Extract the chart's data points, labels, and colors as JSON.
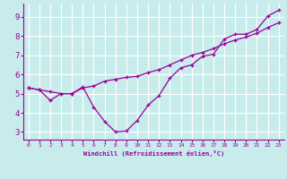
{
  "xlabel": "Windchill (Refroidissement éolien,°C)",
  "xlim": [
    -0.5,
    23.5
  ],
  "ylim": [
    2.6,
    9.7
  ],
  "xticks": [
    0,
    1,
    2,
    3,
    4,
    5,
    6,
    7,
    8,
    9,
    10,
    11,
    12,
    13,
    14,
    15,
    16,
    17,
    18,
    19,
    20,
    21,
    22,
    23
  ],
  "yticks": [
    3,
    4,
    5,
    6,
    7,
    8,
    9
  ],
  "bg_color": "#c8ecec",
  "line_color": "#990099",
  "grid_color": "#ffffff",
  "line1_x": [
    0,
    1,
    2,
    3,
    4,
    5,
    6,
    7,
    8,
    9,
    10,
    11,
    12,
    13,
    14,
    15,
    16,
    17,
    18,
    19,
    20,
    21,
    22,
    23
  ],
  "line1_y": [
    5.3,
    5.2,
    5.1,
    5.0,
    5.0,
    5.3,
    5.4,
    5.65,
    5.75,
    5.85,
    5.9,
    6.1,
    6.25,
    6.5,
    6.75,
    7.0,
    7.15,
    7.35,
    7.6,
    7.8,
    7.95,
    8.15,
    8.45,
    8.7
  ],
  "line2_x": [
    0,
    1,
    2,
    3,
    4,
    5,
    6,
    7,
    8,
    9,
    10,
    11,
    12,
    13,
    14,
    15,
    16,
    17,
    18,
    19,
    20,
    21,
    22,
    23
  ],
  "line2_y": [
    5.3,
    5.2,
    4.65,
    5.0,
    5.0,
    5.35,
    4.3,
    3.55,
    3.0,
    3.05,
    3.6,
    4.4,
    4.9,
    5.8,
    6.35,
    6.5,
    6.95,
    7.05,
    7.85,
    8.1,
    8.1,
    8.35,
    9.05,
    9.35
  ]
}
